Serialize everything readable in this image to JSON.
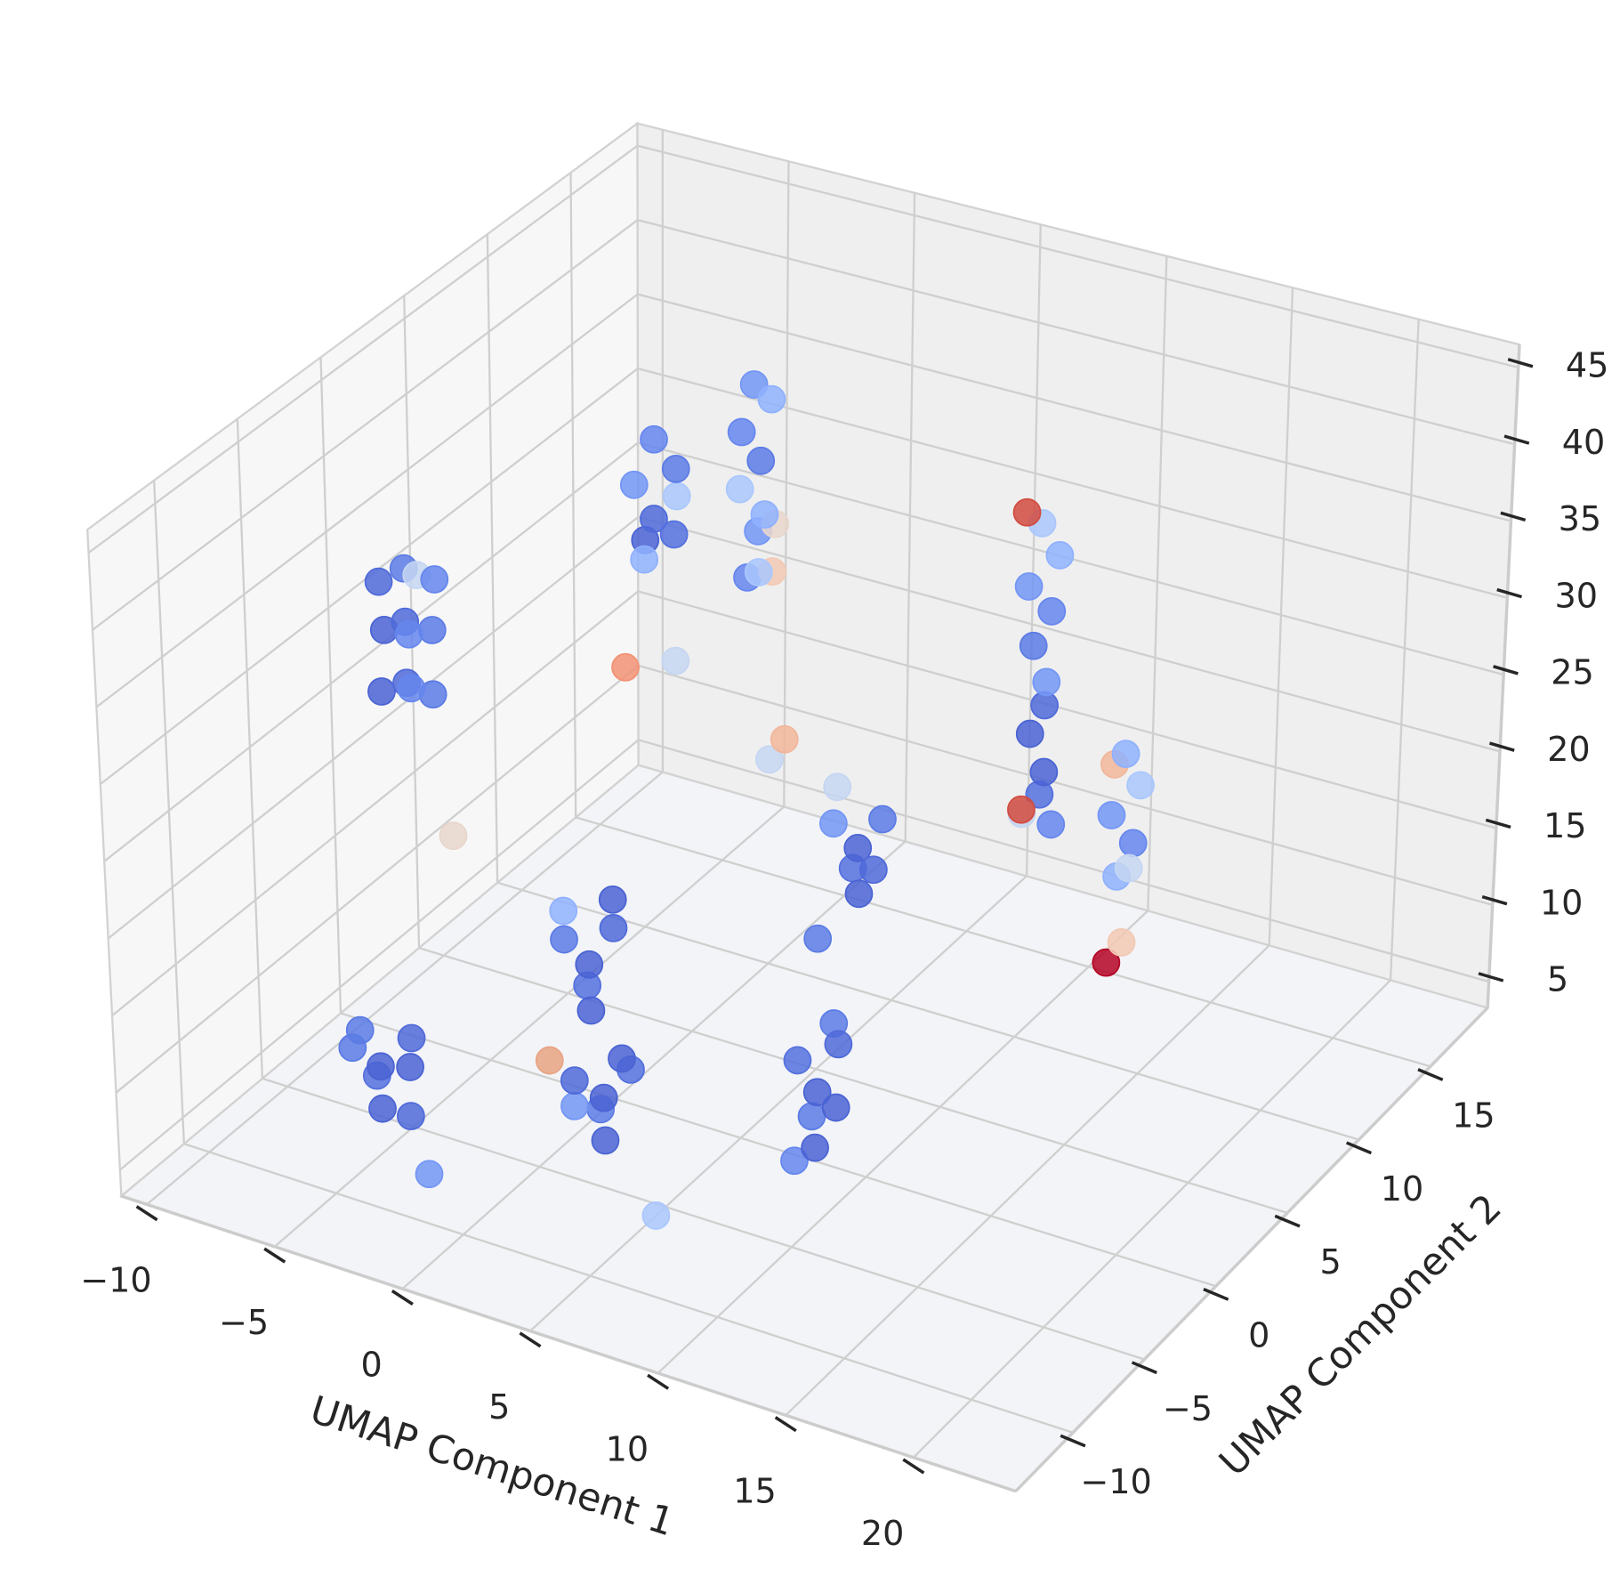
{
  "chart_data": {
    "type": "scatter3d",
    "xlabel": "UMAP Component 1",
    "ylabel": "UMAP Component 2",
    "xlim": [
      -11,
      24
    ],
    "ylim": [
      -14,
      19
    ],
    "zlim": [
      3.3,
      46.5
    ],
    "xticks": [
      {
        "value": -10,
        "label": "−10"
      },
      {
        "value": -5,
        "label": "−5"
      },
      0,
      5,
      10,
      15,
      20
    ],
    "yticks": [
      {
        "value": -10,
        "label": "−10"
      },
      {
        "value": -5,
        "label": "−5"
      },
      0,
      5,
      10,
      15
    ],
    "zticks": [
      5,
      10,
      15,
      20,
      25,
      30,
      35,
      40,
      45
    ],
    "grid": true,
    "x": [
      -4.4,
      -3.4,
      -5.3,
      -4.0,
      -5.0,
      -3.8,
      -4.6,
      -3.2,
      3.1,
      4.0,
      2.2,
      3.5,
      2.6,
      3.9,
      2.0,
      1.6,
      9.2,
      9.8,
      8.6,
      9.4,
      8.8,
      10.0,
      9.5,
      8.7,
      -1.8,
      -1.0,
      -2.6,
      -1.5,
      -2.2,
      -1.2,
      -2.8,
      3.3,
      4.1,
      2.5,
      3.6,
      2.8,
      4.0,
      2.4,
      -8,
      -7.0,
      -8.8,
      -7.5,
      -8,
      -7.2,
      -8.7,
      -7.6,
      -8,
      -7.1,
      -8.8,
      -7.5,
      -2.1,
      -1.5,
      -2.7,
      -2.0,
      -1.4,
      -2.6,
      -2.2,
      -1.6,
      0.5,
      1.0,
      0.2,
      0.7,
      0.0,
      1.1,
      0.4,
      0.8,
      0.1,
      1.2,
      0.9,
      9.7,
      10.3,
      9.4,
      9.9,
      9.5,
      10.1,
      9.8,
      9.3,
      10.0,
      9.6,
      10.2,
      9.2,
      9.4,
      9.3,
      11.9,
      12.4,
      11.5,
      12.1,
      11.7,
      12.3,
      11.4,
      -3.3,
      -1.5,
      1.7,
      1.1,
      -6.3,
      11.3,
      11.9,
      1.7,
      -2.6,
      5.1
    ],
    "y": [
      -7.9,
      -7.5,
      -8.2,
      -8.5,
      -7.2,
      -7.0,
      -8.8,
      -8.0,
      -5.8,
      -5.5,
      -6.2,
      -6.4,
      -5.2,
      -5.9,
      -5.9,
      -6.8,
      -1.9,
      -1.5,
      -2.2,
      -2.4,
      -1.6,
      -2.0,
      -1.3,
      -2.6,
      1.3,
      1.6,
      1.0,
      0.9,
      1.8,
      1.9,
      1.3,
      10.5,
      10.8,
      10.2,
      10.1,
      11,
      10.4,
      10.6,
      0,
      0.3,
      -0.3,
      0,
      0,
      0.4,
      -0.2,
      -0.4,
      0,
      0.2,
      -0.3,
      -0.5,
      6.2,
      6.6,
      5.9,
      6.0,
      6.3,
      6.4,
      5.7,
      6.8,
      8.3,
      8.6,
      8.0,
      8.4,
      8.2,
      8.0,
      8.7,
      8.1,
      8.5,
      8.5,
      8.8,
      11.8,
      12,
      11.5,
      12.2,
      11.7,
      11.6,
      12.0,
      11.9,
      11.7,
      12.1,
      11.9,
      11.6,
      11.3,
      11.4,
      14,
      14.2,
      13.8,
      14.3,
      13.9,
      13.7,
      14.1,
      6.2,
      6.5,
      8.3,
      8.3,
      0,
      14,
      14,
      10.5,
      -7.9,
      -5.8
    ],
    "z": [
      10,
      12,
      11,
      8,
      8.5,
      9.5,
      13,
      7.5,
      10,
      12,
      11,
      8,
      8.5,
      13,
      9,
      12.5,
      10,
      13,
      12,
      7,
      8,
      9.5,
      14,
      6,
      10,
      12.5,
      11.5,
      7.5,
      8,
      14,
      13,
      12,
      14,
      13.5,
      9.5,
      10,
      11,
      15.5,
      34,
      33.5,
      33,
      33.8,
      30.5,
      30,
      29.8,
      30.2,
      26.5,
      26,
      25.8,
      26.8,
      40,
      38,
      37,
      35,
      34,
      33,
      32.5,
      36,
      43,
      42,
      40,
      38,
      36,
      35,
      33,
      31,
      30,
      34,
      30.5,
      35,
      33,
      31,
      29,
      27,
      25,
      23,
      21,
      19,
      17,
      15.5,
      16,
      36,
      16.5,
      19,
      17,
      15,
      13,
      11,
      12,
      18,
      24.5,
      25.5,
      20.3,
      18.7,
      17.3,
      5.1,
      6.7,
      5.3,
      4,
      3.5
    ],
    "colors": [
      "#4a63d3",
      "#4f6ad9",
      "#5b7be5",
      "#4a63d3",
      "#5470de",
      "#4a63d3",
      "#5b7be5",
      "#4f6ad9",
      "#4a63d3",
      "#5470de",
      "#4f6ad9",
      "#4a63d3",
      "#5b7be5",
      "#4a63d3",
      "#7396f5",
      "#e8a383",
      "#4a63d3",
      "#4f6ad9",
      "#5470de",
      "#4a63d3",
      "#5b7be5",
      "#4a63d3",
      "#5b7be5",
      "#6586ed",
      "#4a63d3",
      "#4f6ad9",
      "#5b7be5",
      "#4a63d3",
      "#5470de",
      "#4a63d3",
      "#8fb1fe",
      "#4a63d3",
      "#5b7be5",
      "#7396f5",
      "#4a63d3",
      "#5470de",
      "#4f6ad9",
      "#c5d6f2",
      "#5b7be5",
      "#6586ed",
      "#4f6ad9",
      "#c5d6f2",
      "#4f6ad9",
      "#5b7be5",
      "#4a63d3",
      "#6586ed",
      "#4f6ad9",
      "#5b7be5",
      "#4a63d3",
      "#6586ed",
      "#6586ed",
      "#5b7be5",
      "#7396f5",
      "#4f6ad9",
      "#5470de",
      "#4a63d3",
      "#8fb1fe",
      "#aac7fd",
      "#7396f5",
      "#8fb1fe",
      "#6586ed",
      "#5b7be5",
      "#aac7fd",
      "#8fb1fe",
      "#7396f5",
      "#aac7fd",
      "#6586ed",
      "#e8d6cc",
      "#f2c9b4",
      "#aac7fd",
      "#8fb1fe",
      "#7396f5",
      "#6586ed",
      "#5b7be5",
      "#7396f5",
      "#4f6ad9",
      "#4a63d3",
      "#4a63d3",
      "#5470de",
      "#6586ed",
      "#c5d6f2",
      "#d24b40",
      "#d24b40",
      "#8fb1fe",
      "#aac7fd",
      "#7396f5",
      "#6586ed",
      "#8fb1fe",
      "#c5d6f2",
      "#f2b69a",
      "#f29274",
      "#c5d6f2",
      "#f2b69a",
      "#c5d6f2",
      "#e8d6cc",
      "#b40426",
      "#f2c9b4",
      "#5b7be5",
      "#7396f5",
      "#aac7fd"
    ]
  }
}
